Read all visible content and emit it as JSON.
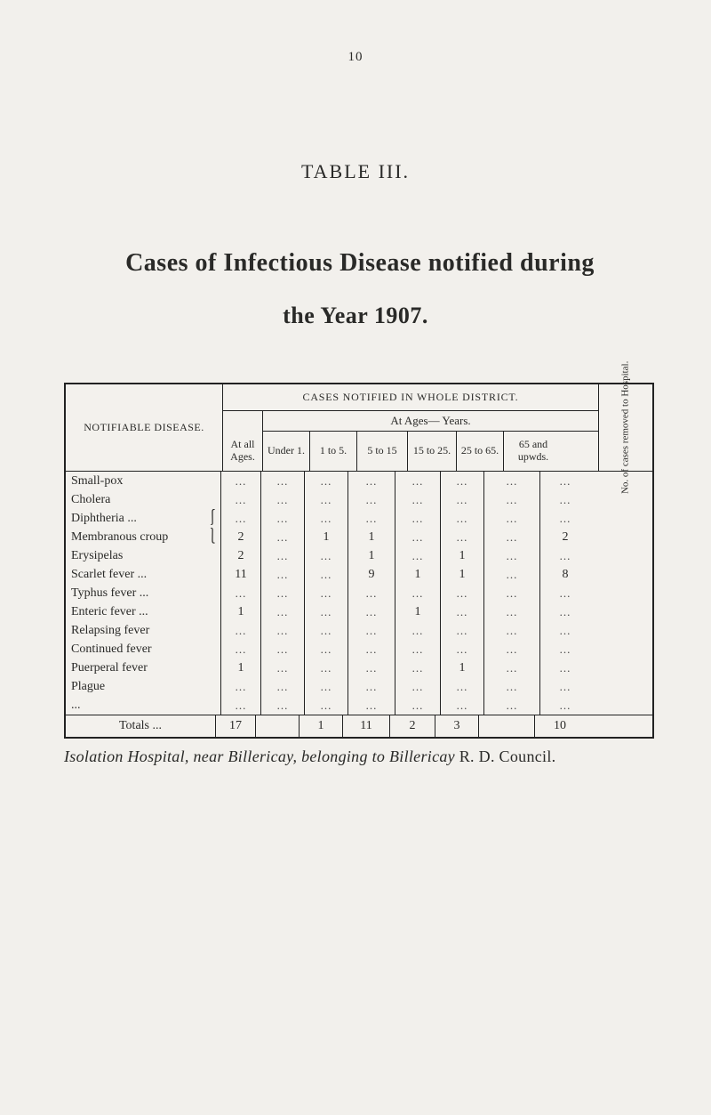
{
  "page": {
    "number_label": "10",
    "table_label": "TABLE III.",
    "title": "Cases of Infectious Disease notified during",
    "subtitle": "the Year 1907."
  },
  "table": {
    "header": {
      "disease_label": "NOTIFIABLE DISEASE.",
      "cases_label": "CASES NOTIFIED IN WHOLE DISTRICT.",
      "at_all_ages": "At all Ages.",
      "at_ages_years": "At Ages— Years.",
      "under_1": "Under 1.",
      "c_1_5": "1 to 5.",
      "c_5_15": "5 to 15",
      "c_15_25": "15 to 25.",
      "c_25_65": "25 to 65.",
      "c_65_up": "65 and upwds.",
      "removed": "No. of cases removed to Hospital."
    },
    "rows": [
      {
        "disease": "Small-pox",
        "brace": "",
        "atall": "...",
        "u1": "...",
        "c15": "...",
        "c515": "...",
        "c1525": "...",
        "c2565": "...",
        "c65": "...",
        "rem": "..."
      },
      {
        "disease": "Cholera",
        "brace": "",
        "atall": "...",
        "u1": "...",
        "c15": "...",
        "c515": "...",
        "c1525": "...",
        "c2565": "...",
        "c65": "...",
        "rem": "..."
      },
      {
        "disease": "Diphtheria    ...",
        "brace": "⎰",
        "atall": "...",
        "u1": "...",
        "c15": "...",
        "c515": "...",
        "c1525": "...",
        "c2565": "...",
        "c65": "...",
        "rem": "..."
      },
      {
        "disease": "Membranous croup",
        "brace": "⎱",
        "atall": "2",
        "u1": "...",
        "c15": "1",
        "c515": "1",
        "c1525": "...",
        "c2565": "...",
        "c65": "...",
        "rem": "2"
      },
      {
        "disease": "Erysipelas",
        "brace": "",
        "atall": "2",
        "u1": "...",
        "c15": "...",
        "c515": "1",
        "c1525": "...",
        "c2565": "1",
        "c65": "...",
        "rem": "..."
      },
      {
        "disease": "Scarlet fever ...",
        "brace": "",
        "atall": "11",
        "u1": "...",
        "c15": "...",
        "c515": "9",
        "c1525": "1",
        "c2565": "1",
        "c65": "...",
        "rem": "8"
      },
      {
        "disease": "Typhus fever ...",
        "brace": "",
        "atall": "...",
        "u1": "...",
        "c15": "...",
        "c515": "...",
        "c1525": "...",
        "c2565": "...",
        "c65": "...",
        "rem": "..."
      },
      {
        "disease": "Enteric fever ...",
        "brace": "",
        "atall": "1",
        "u1": "...",
        "c15": "...",
        "c515": "...",
        "c1525": "1",
        "c2565": "...",
        "c65": "...",
        "rem": "..."
      },
      {
        "disease": "Relapsing fever",
        "brace": "",
        "atall": "...",
        "u1": "...",
        "c15": "...",
        "c515": "...",
        "c1525": "...",
        "c2565": "...",
        "c65": "...",
        "rem": "..."
      },
      {
        "disease": "Continued fever",
        "brace": "",
        "atall": "...",
        "u1": "...",
        "c15": "...",
        "c515": "...",
        "c1525": "...",
        "c2565": "...",
        "c65": "...",
        "rem": "..."
      },
      {
        "disease": "Puerperal fever",
        "brace": "",
        "atall": "1",
        "u1": "...",
        "c15": "...",
        "c515": "...",
        "c1525": "...",
        "c2565": "1",
        "c65": "...",
        "rem": "..."
      },
      {
        "disease": "Plague",
        "brace": "",
        "atall": "...",
        "u1": "...",
        "c15": "...",
        "c515": "...",
        "c1525": "...",
        "c2565": "...",
        "c65": "...",
        "rem": "..."
      },
      {
        "disease": "...",
        "brace": "",
        "atall": "...",
        "u1": "...",
        "c15": "...",
        "c515": "...",
        "c1525": "...",
        "c2565": "...",
        "c65": "...",
        "rem": "..."
      }
    ],
    "totals": {
      "label": "Totals   ...",
      "atall": "17",
      "u1": "",
      "c15": "1",
      "c515": "11",
      "c1525": "2",
      "c2565": "3",
      "c65": "",
      "rem": "10"
    }
  },
  "caption": {
    "text_pre": "Isolation Hospital, near Billericay, belonging to Billericay ",
    "text_r": "R. D. Council."
  },
  "colors": {
    "bg": "#f2f0ec",
    "fg": "#2a2a28",
    "rule": "#222222"
  }
}
